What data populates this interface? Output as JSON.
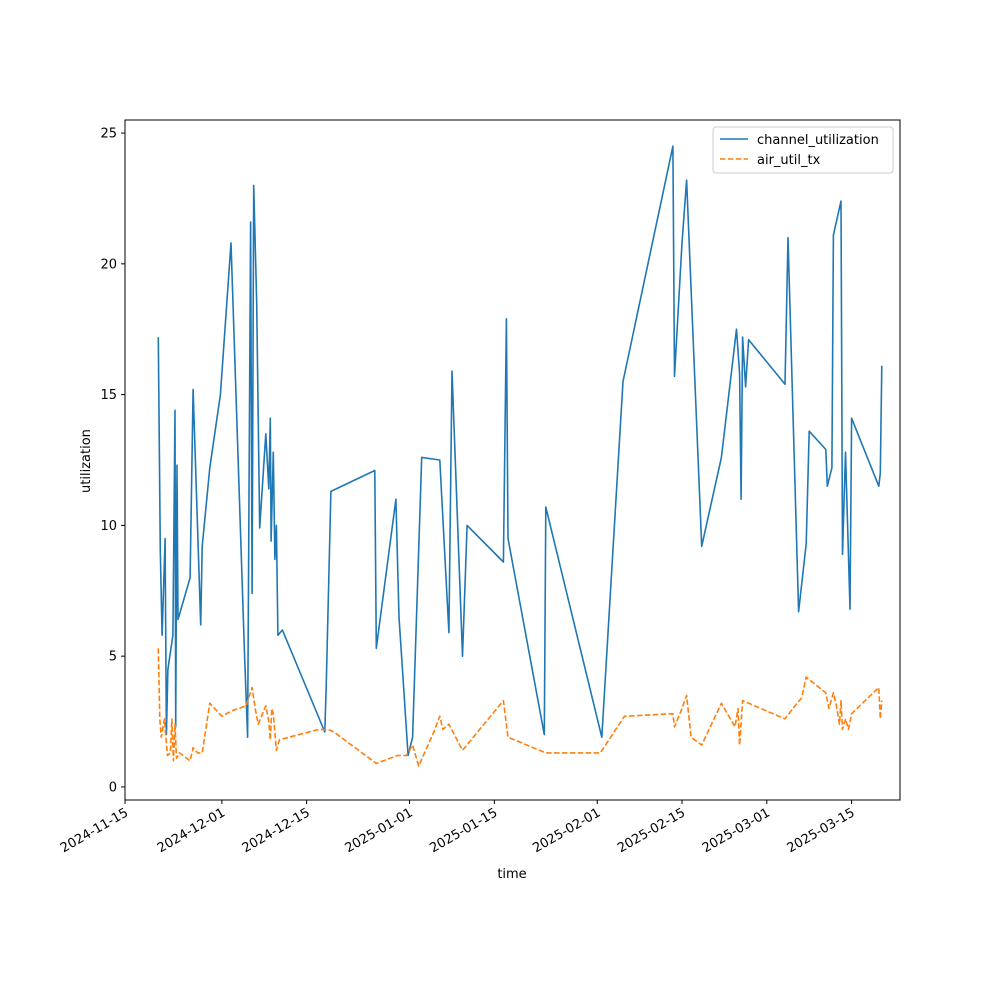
{
  "chart_data": {
    "type": "line",
    "title": "",
    "xlabel": "time",
    "ylabel": "utilization",
    "x_axis": "date",
    "xlim": [
      "2024-11-15",
      "2025-03-23"
    ],
    "ylim": [
      -0.5,
      25.5
    ],
    "xticks": [
      "2024-11-15",
      "2024-12-01",
      "2024-12-15",
      "2025-01-01",
      "2025-01-15",
      "2025-02-01",
      "2025-02-15",
      "2025-03-01",
      "2025-03-15"
    ],
    "yticks": [
      0,
      5,
      10,
      15,
      20,
      25
    ],
    "grid": false,
    "legend": "top-right",
    "series": [
      {
        "name": "channel_utilization",
        "color": "#1f77b4",
        "style": "solid",
        "points": [
          [
            "2024-11-20T12:00",
            17.2
          ],
          [
            "2024-11-20T20:00",
            9.0
          ],
          [
            "2024-11-21T03:00",
            5.8
          ],
          [
            "2024-11-21T15:00",
            9.5
          ],
          [
            "2024-11-21T20:00",
            2.0
          ],
          [
            "2024-11-22T02:00",
            4.5
          ],
          [
            "2024-11-22T22:00",
            5.8
          ],
          [
            "2024-11-23T06:00",
            14.4
          ],
          [
            "2024-11-23T09:00",
            2.3
          ],
          [
            "2024-11-23T14:00",
            12.3
          ],
          [
            "2024-11-23T18:00",
            6.4
          ],
          [
            "2024-11-25T18:00",
            8.0
          ],
          [
            "2024-11-26T06:00",
            15.2
          ],
          [
            "2024-11-27T12:00",
            6.2
          ],
          [
            "2024-11-27T18:00",
            9.2
          ],
          [
            "2024-11-29T00:00",
            12.2
          ],
          [
            "2024-11-30T18:00",
            15.0
          ],
          [
            "2024-12-02T12:00",
            20.8
          ],
          [
            "2024-12-04T18:00",
            5.0
          ],
          [
            "2024-12-05T06:00",
            1.9
          ],
          [
            "2024-12-05T18:00",
            21.6
          ],
          [
            "2024-12-06T00:00",
            7.4
          ],
          [
            "2024-12-06T06:00",
            23.0
          ],
          [
            "2024-12-06T18:00",
            18.5
          ],
          [
            "2024-12-07T06:00",
            9.9
          ],
          [
            "2024-12-08T06:00",
            13.5
          ],
          [
            "2024-12-08T18:00",
            11.4
          ],
          [
            "2024-12-09T00:00",
            14.1
          ],
          [
            "2024-12-09T03:00",
            9.4
          ],
          [
            "2024-12-09T12:00",
            12.8
          ],
          [
            "2024-12-09T18:00",
            8.7
          ],
          [
            "2024-12-10T00:00",
            10.0
          ],
          [
            "2024-12-10T06:00",
            5.8
          ],
          [
            "2024-12-11T00:00",
            6.0
          ],
          [
            "2024-12-18T00:00",
            2.1
          ],
          [
            "2024-12-18T06:00",
            4.0
          ],
          [
            "2024-12-19T00:00",
            11.3
          ],
          [
            "2024-12-26T06:00",
            12.1
          ],
          [
            "2024-12-26T12:00",
            5.3
          ],
          [
            "2024-12-29T18:00",
            11.0
          ],
          [
            "2024-12-30T06:00",
            6.5
          ],
          [
            "2024-12-31T18:00",
            1.2
          ],
          [
            "2025-01-01T12:00",
            1.9
          ],
          [
            "2025-01-03T00:00",
            12.6
          ],
          [
            "2025-01-06T00:00",
            12.5
          ],
          [
            "2025-01-07T12:00",
            5.9
          ],
          [
            "2025-01-08T00:00",
            15.9
          ],
          [
            "2025-01-09T18:00",
            5.0
          ],
          [
            "2025-01-10T12:00",
            10.0
          ],
          [
            "2025-01-16T12:00",
            8.6
          ],
          [
            "2025-01-17T00:00",
            17.9
          ],
          [
            "2025-01-17T06:00",
            9.5
          ],
          [
            "2025-01-23T06:00",
            2.0
          ],
          [
            "2025-01-23T12:00",
            10.7
          ],
          [
            "2025-02-01T18:00",
            1.9
          ],
          [
            "2025-02-05T06:00",
            15.5
          ],
          [
            "2025-02-13T12:00",
            24.5
          ],
          [
            "2025-02-13T18:00",
            15.7
          ],
          [
            "2025-02-15T00:00",
            20.8
          ],
          [
            "2025-02-15T18:00",
            23.2
          ],
          [
            "2025-02-18T06:00",
            9.2
          ],
          [
            "2025-02-21T12:00",
            12.6
          ],
          [
            "2025-02-24T00:00",
            17.5
          ],
          [
            "2025-02-24T12:00",
            15.8
          ],
          [
            "2025-02-24T18:00",
            11.0
          ],
          [
            "2025-02-25T00:00",
            17.2
          ],
          [
            "2025-02-25T12:00",
            15.3
          ],
          [
            "2025-02-26T00:00",
            17.1
          ],
          [
            "2025-03-04T00:00",
            15.4
          ],
          [
            "2025-03-04T12:00",
            21.0
          ],
          [
            "2025-03-06T06:00",
            6.7
          ],
          [
            "2025-03-07T12:00",
            9.3
          ],
          [
            "2025-03-08T00:00",
            13.6
          ],
          [
            "2025-03-10T18:00",
            12.9
          ],
          [
            "2025-03-11T00:00",
            11.5
          ],
          [
            "2025-03-11T18:00",
            12.2
          ],
          [
            "2025-03-12T00:00",
            21.1
          ],
          [
            "2025-03-13T06:00",
            22.4
          ],
          [
            "2025-03-13T12:00",
            8.9
          ],
          [
            "2025-03-14T00:00",
            12.8
          ],
          [
            "2025-03-14T18:00",
            6.8
          ],
          [
            "2025-03-15T00:00",
            14.1
          ],
          [
            "2025-03-19T12:00",
            11.5
          ],
          [
            "2025-03-19T18:00",
            12.0
          ],
          [
            "2025-03-20T00:00",
            16.1
          ]
        ]
      },
      {
        "name": "air_util_tx",
        "color": "#ff7f0e",
        "style": "dashed",
        "points": [
          [
            "2024-11-20T12:00",
            5.3
          ],
          [
            "2024-11-20T18:00",
            2.6
          ],
          [
            "2024-11-21T00:00",
            1.9
          ],
          [
            "2024-11-21T12:00",
            2.6
          ],
          [
            "2024-11-22T00:00",
            1.2
          ],
          [
            "2024-11-22T12:00",
            1.3
          ],
          [
            "2024-11-22T18:00",
            2.6
          ],
          [
            "2024-11-23T00:00",
            1.0
          ],
          [
            "2024-11-23T06:00",
            2.4
          ],
          [
            "2024-11-23T12:00",
            1.1
          ],
          [
            "2024-11-24T00:00",
            1.3
          ],
          [
            "2024-11-25T18:00",
            1.0
          ],
          [
            "2024-11-26T06:00",
            1.5
          ],
          [
            "2024-11-27T00:00",
            1.3
          ],
          [
            "2024-11-27T18:00",
            1.3
          ],
          [
            "2024-11-29T00:00",
            3.2
          ],
          [
            "2024-12-01T00:00",
            2.7
          ],
          [
            "2024-12-02T12:00",
            2.9
          ],
          [
            "2024-12-05T00:00",
            3.1
          ],
          [
            "2024-12-06T00:00",
            3.8
          ],
          [
            "2024-12-06T12:00",
            3.0
          ],
          [
            "2024-12-07T00:00",
            2.4
          ],
          [
            "2024-12-08T06:00",
            3.1
          ],
          [
            "2024-12-08T18:00",
            2.5
          ],
          [
            "2024-12-09T00:00",
            1.8
          ],
          [
            "2024-12-09T06:00",
            3.0
          ],
          [
            "2024-12-09T12:00",
            2.8
          ],
          [
            "2024-12-10T00:00",
            1.4
          ],
          [
            "2024-12-10T12:00",
            1.8
          ],
          [
            "2024-12-17T00:00",
            2.2
          ],
          [
            "2024-12-18T12:00",
            2.2
          ],
          [
            "2024-12-19T12:00",
            2.1
          ],
          [
            "2024-12-26T12:00",
            0.9
          ],
          [
            "2024-12-30T00:00",
            1.2
          ],
          [
            "2024-12-31T12:00",
            1.2
          ],
          [
            "2025-01-01T12:00",
            1.6
          ],
          [
            "2025-01-02T12:00",
            0.8
          ],
          [
            "2025-01-05T00:00",
            2.1
          ],
          [
            "2025-01-06T00:00",
            2.7
          ],
          [
            "2025-01-06T12:00",
            2.2
          ],
          [
            "2025-01-07T12:00",
            2.4
          ],
          [
            "2025-01-09T18:00",
            1.4
          ],
          [
            "2025-01-16T12:00",
            3.3
          ],
          [
            "2025-01-17T06:00",
            1.9
          ],
          [
            "2025-01-23T12:00",
            1.3
          ],
          [
            "2025-02-01T12:00",
            1.3
          ],
          [
            "2025-02-05T12:00",
            2.7
          ],
          [
            "2025-02-13T12:00",
            2.8
          ],
          [
            "2025-02-13T18:00",
            2.3
          ],
          [
            "2025-02-15T00:00",
            3.0
          ],
          [
            "2025-02-15T18:00",
            3.5
          ],
          [
            "2025-02-16T12:00",
            1.9
          ],
          [
            "2025-02-18T06:00",
            1.6
          ],
          [
            "2025-02-21T12:00",
            3.2
          ],
          [
            "2025-02-23T18:00",
            2.3
          ],
          [
            "2025-02-24T06:00",
            3.0
          ],
          [
            "2025-02-24T12:00",
            1.6
          ],
          [
            "2025-02-25T00:00",
            3.3
          ],
          [
            "2025-02-26T00:00",
            3.2
          ],
          [
            "2025-03-04T00:00",
            2.6
          ],
          [
            "2025-03-06T00:00",
            3.2
          ],
          [
            "2025-03-06T18:00",
            3.4
          ],
          [
            "2025-03-07T12:00",
            4.2
          ],
          [
            "2025-03-10T18:00",
            3.6
          ],
          [
            "2025-03-11T06:00",
            3.0
          ],
          [
            "2025-03-12T00:00",
            3.6
          ],
          [
            "2025-03-12T12:00",
            3.1
          ],
          [
            "2025-03-13T00:00",
            2.4
          ],
          [
            "2025-03-13T06:00",
            3.3
          ],
          [
            "2025-03-13T12:00",
            2.2
          ],
          [
            "2025-03-14T00:00",
            2.6
          ],
          [
            "2025-03-14T12:00",
            2.2
          ],
          [
            "2025-03-15T00:00",
            2.8
          ],
          [
            "2025-03-19T12:00",
            3.8
          ],
          [
            "2025-03-19T18:00",
            2.6
          ],
          [
            "2025-03-20T00:00",
            3.3
          ]
        ]
      }
    ]
  }
}
